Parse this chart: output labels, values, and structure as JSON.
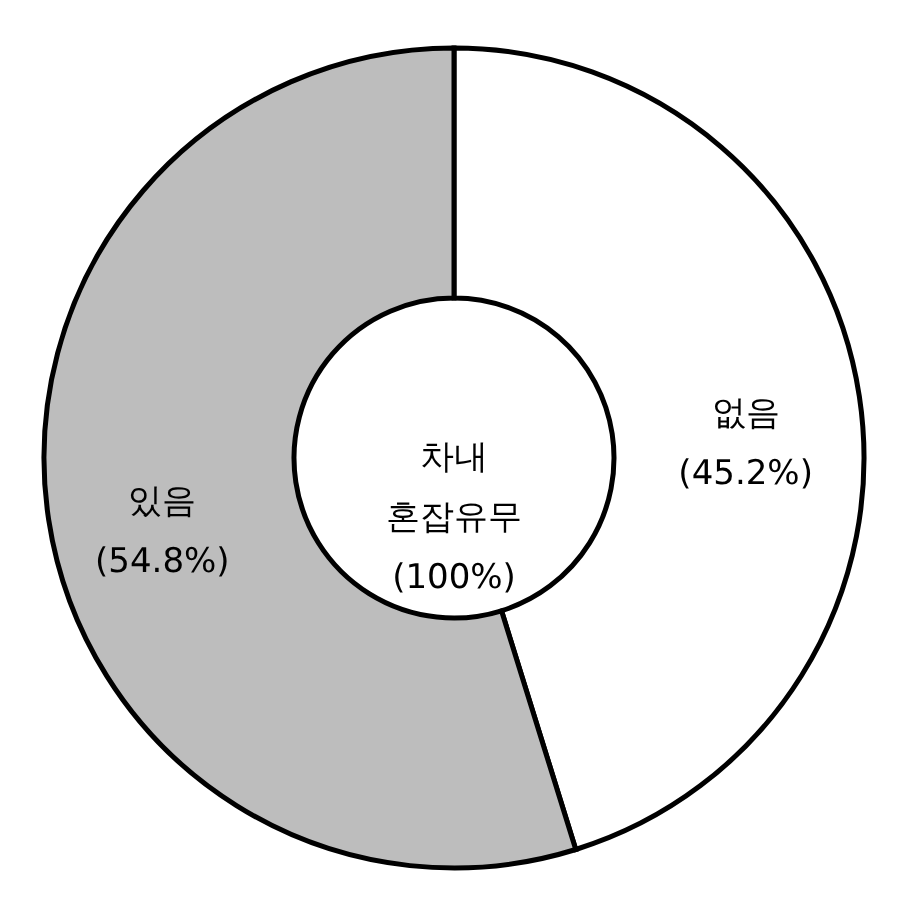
{
  "chart_data": {
    "type": "donut",
    "categories": [
      "없음",
      "있음"
    ],
    "values": [
      45.2,
      54.8
    ],
    "colors": [
      "#ffffff",
      "#bdbdbd"
    ],
    "value_labels": [
      "(45.2%)",
      "(54.8%)"
    ],
    "annotations": [
      "차내\n혼잡유무\n(100%)"
    ]
  }
}
